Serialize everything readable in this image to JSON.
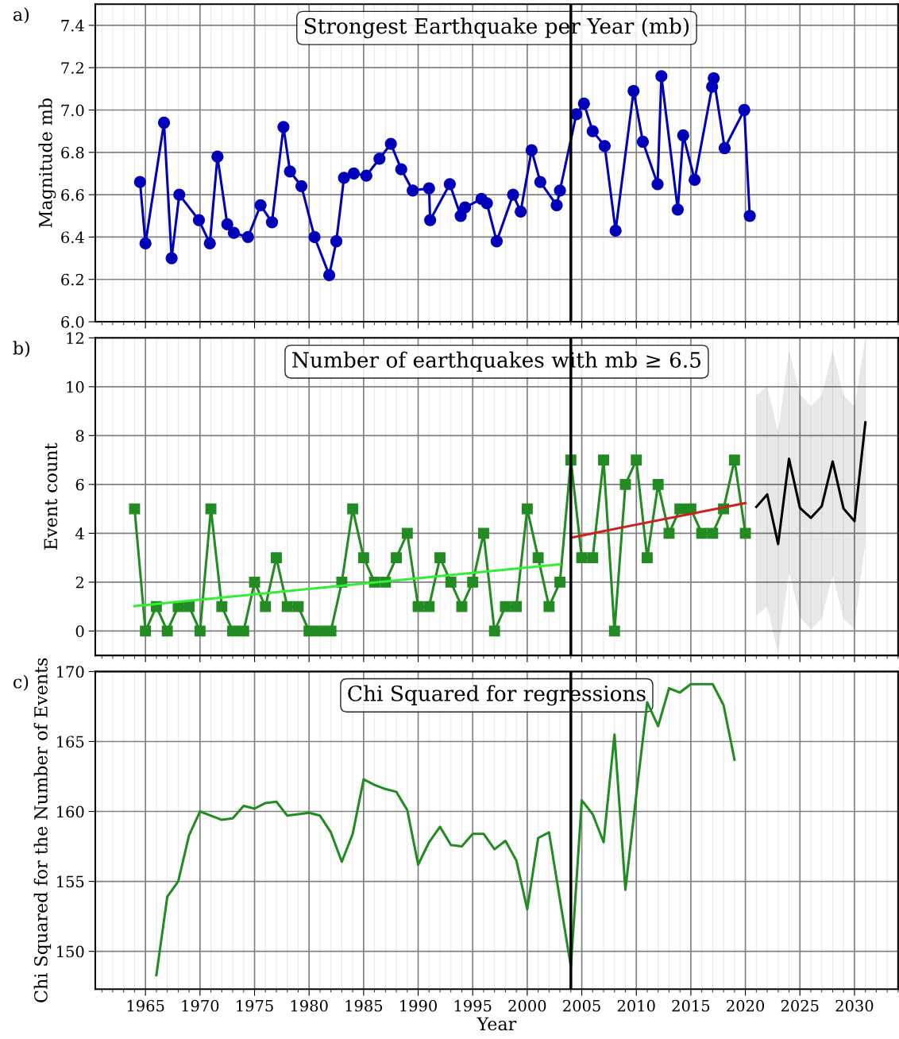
{
  "chart_data": [
    {
      "type": "line",
      "title": "Strongest Earthquake per Year (mb)",
      "ylabel": "Magnitude mb",
      "annotations": [
        "a)"
      ],
      "xlim": [
        1960.4,
        2034
      ],
      "xticks": [
        1965,
        1970,
        1975,
        1980,
        1985,
        1990,
        1995,
        2000,
        2005,
        2010,
        2015,
        2020,
        2025,
        2030
      ],
      "ylim": [
        6.0,
        7.5
      ],
      "yticks": [
        {
          "value": 6.0,
          "label": "6.0"
        },
        6.2,
        6.4,
        6.6,
        6.8,
        {
          "value": 7.0,
          "label": "7.0"
        },
        7.2,
        7.4
      ],
      "tick_labels": "y",
      "grid": true,
      "ref_lines": [
        {
          "axis": "x",
          "value": 2004,
          "color": "#000000",
          "line_style": "solid"
        }
      ],
      "series": [
        {
          "color": "#0000bb",
          "marker": "circle",
          "line_style": "solid",
          "x": [
            1964.5,
            1965.0,
            1966.7,
            1967.4,
            1968.1,
            1969.9,
            1970.9,
            1971.6,
            1972.5,
            1973.1,
            1974.4,
            1975.55,
            1976.6,
            1977.65,
            1978.25,
            1979.3,
            1980.5,
            1981.85,
            1982.5,
            1983.2,
            1984.1,
            1985.25,
            1986.45,
            1987.5,
            1988.45,
            1989.5,
            1991.0,
            1991.1,
            1992.9,
            1993.9,
            1994.3,
            1995.8,
            1996.3,
            1997.2,
            1998.7,
            1999.4,
            2000.4,
            2001.2,
            2002.7,
            2003.0,
            2004.5,
            2005.2,
            2006.0,
            2007.1,
            2008.1,
            2009.75,
            2010.6,
            2011.95,
            2012.3,
            2013.8,
            2014.3,
            2015.35,
            2016.95,
            2017.1,
            2018.1,
            2019.9,
            2020.4
          ],
          "values": [
            6.66,
            6.37,
            6.94,
            6.3,
            6.6,
            6.48,
            6.37,
            6.78,
            6.46,
            6.42,
            6.4,
            6.55,
            6.47,
            6.92,
            6.71,
            6.64,
            6.4,
            6.22,
            6.38,
            6.68,
            6.7,
            6.69,
            6.77,
            6.84,
            6.72,
            6.62,
            6.63,
            6.48,
            6.65,
            6.5,
            6.54,
            6.58,
            6.56,
            6.38,
            6.6,
            6.52,
            6.81,
            6.66,
            6.55,
            6.62,
            6.98,
            7.03,
            6.9,
            6.83,
            6.43,
            7.09,
            6.85,
            6.65,
            7.16,
            6.53,
            6.88,
            6.67,
            7.11,
            7.15,
            6.82,
            7.0,
            6.5
          ]
        }
      ]
    },
    {
      "type": "line",
      "title": "Number of earthquakes with mb ≥ 6.5",
      "ylabel": "Event count",
      "annotations": [
        "b)"
      ],
      "xlim": [
        1960.4,
        2034
      ],
      "xticks": [
        1965,
        1970,
        1975,
        1980,
        1985,
        1990,
        1995,
        2000,
        2005,
        2010,
        2015,
        2020,
        2025,
        2030
      ],
      "ylim": [
        -1,
        12
      ],
      "yticks": [
        0,
        2,
        4,
        6,
        8,
        10,
        12
      ],
      "tick_labels": "y",
      "grid": true,
      "ref_lines": [
        {
          "axis": "x",
          "value": 2004,
          "color": "#000000",
          "line_style": "solid"
        }
      ],
      "series": [
        {
          "color": "#228b22",
          "marker": "square",
          "line_style": "solid",
          "x": [
            1964,
            1965,
            1966,
            1967,
            1968,
            1969,
            1970,
            1971,
            1972,
            1973,
            1974,
            1975,
            1976,
            1977,
            1978,
            1979,
            1980,
            1981,
            1982,
            1983,
            1984,
            1985,
            1986,
            1987,
            1988,
            1989,
            1990,
            1991,
            1992,
            1993,
            1994,
            1995,
            1996,
            1997,
            1998,
            1999,
            2000,
            2001,
            2002,
            2003,
            2004,
            2005,
            2006,
            2007,
            2008,
            2009,
            2010,
            2011,
            2012,
            2013,
            2014,
            2015,
            2016,
            2017,
            2018,
            2019,
            2020
          ],
          "values": [
            5,
            0,
            1,
            0,
            1,
            1,
            0,
            5,
            1,
            0,
            0,
            2,
            1,
            3,
            1,
            1,
            0,
            0,
            0,
            2,
            5,
            3,
            2,
            2,
            3,
            4,
            1,
            1,
            3,
            2,
            1,
            2,
            4,
            0,
            1,
            1,
            5,
            3,
            1,
            2,
            7,
            3,
            3,
            7,
            0,
            6,
            7,
            3,
            6,
            4,
            5,
            5,
            4,
            4,
            5,
            7,
            4
          ]
        },
        {
          "color": "#33ee33",
          "marker": "none",
          "line_style": "solid",
          "x": [
            1964,
            2003
          ],
          "values": [
            1.02,
            2.73
          ]
        },
        {
          "color": "#cc2222",
          "marker": "none",
          "line_style": "solid",
          "x": [
            2004,
            2020
          ],
          "values": [
            3.82,
            5.24
          ]
        },
        {
          "color": "#000000",
          "marker": "none",
          "line_style": "solid",
          "x": [
            2021,
            2022,
            2023,
            2024,
            2025,
            2026,
            2027,
            2028,
            2029,
            2030,
            2031
          ],
          "values": [
            5.08,
            5.59,
            3.56,
            7.05,
            5.04,
            4.63,
            5.11,
            6.94,
            5.01,
            4.5,
            8.54
          ],
          "lower": [
            0.62,
            1.0,
            -0.93,
            2.43,
            0.56,
            0.07,
            0.51,
            2.27,
            0.51,
            0.07,
            3.66
          ],
          "upper": [
            9.65,
            10.0,
            8.15,
            11.5,
            9.7,
            9.2,
            9.65,
            11.5,
            9.65,
            9.2,
            12.0
          ]
        }
      ]
    },
    {
      "type": "line",
      "title": "Chi Squared for regressions",
      "ylabel": "Chi Squared for the Number of Events",
      "xlabel": "Year",
      "annotations": [
        "c)"
      ],
      "xlim": [
        1960.4,
        2034
      ],
      "xticks": [
        1965,
        1970,
        1975,
        1980,
        1985,
        1990,
        1995,
        2000,
        2005,
        2010,
        2015,
        2020,
        2025,
        2030
      ],
      "ylim": [
        147.3,
        170
      ],
      "yticks": [
        150,
        155,
        160,
        165,
        170
      ],
      "grid": true,
      "ref_lines": [
        {
          "axis": "x",
          "value": 2004,
          "color": "#000000",
          "line_style": "solid"
        }
      ],
      "series": [
        {
          "color": "#228b22",
          "marker": "none",
          "line_style": "solid",
          "x": [
            1966,
            1967,
            1968,
            1969,
            1970,
            1971,
            1972,
            1973,
            1974,
            1975,
            1976,
            1977,
            1978,
            1979,
            1980,
            1981,
            1982,
            1983,
            1984,
            1985,
            1986,
            1987,
            1988,
            1989,
            1990,
            1991,
            1992,
            1993,
            1994,
            1995,
            1996,
            1997,
            1998,
            1999,
            2000,
            2001,
            2002,
            2003,
            2004,
            2005,
            2006,
            2007,
            2008,
            2009,
            2010,
            2011,
            2012,
            2013,
            2014,
            2015,
            2016,
            2017,
            2018,
            2019
          ],
          "values": [
            148.3,
            153.9,
            155.0,
            158.3,
            160.0,
            159.7,
            159.4,
            159.5,
            160.4,
            160.2,
            160.6,
            160.7,
            159.7,
            159.8,
            159.9,
            159.7,
            158.5,
            156.4,
            158.4,
            162.3,
            161.9,
            161.6,
            161.4,
            160.1,
            156.2,
            157.8,
            158.9,
            157.6,
            157.5,
            158.4,
            158.4,
            157.3,
            157.9,
            156.5,
            153.0,
            158.1,
            158.5,
            153.7,
            148.9,
            160.8,
            159.8,
            157.8,
            165.5,
            154.4,
            161.2,
            167.8,
            166.1,
            168.8,
            168.5,
            169.1,
            169.1,
            169.1,
            167.6,
            163.7
          ]
        }
      ]
    }
  ]
}
